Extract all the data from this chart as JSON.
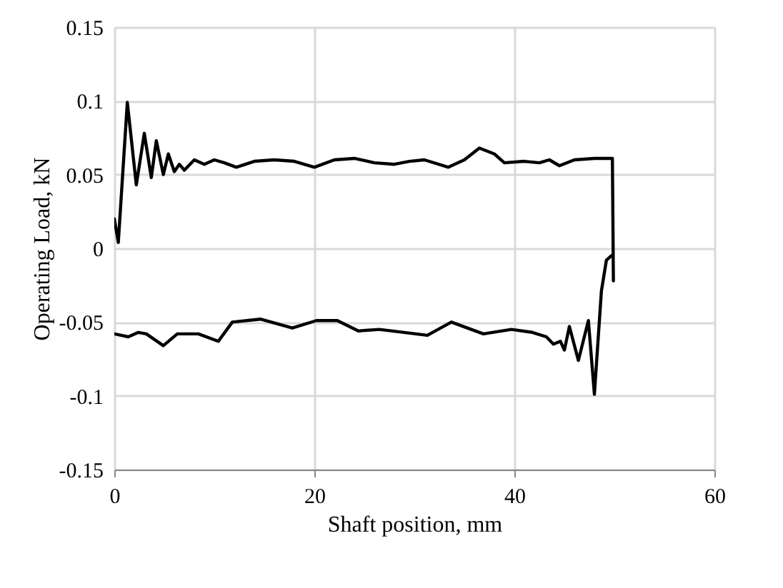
{
  "chart_data": {
    "type": "line",
    "xlabel": "Shaft position, mm",
    "ylabel": "Operating Load, kN",
    "xlim": [
      0,
      60
    ],
    "xticks": [
      0,
      20,
      40,
      60
    ],
    "ylim": [
      -0.15,
      0.15
    ],
    "yticks": [
      -0.15,
      -0.1,
      -0.05,
      0,
      0.05,
      0.1,
      0.15
    ],
    "grid": true,
    "line_style": "solid",
    "marker": "none",
    "series": [
      {
        "color": "#000000",
        "x": [
          0,
          0.4,
          1.3,
          2.2,
          3,
          3.7,
          4.2,
          4.9,
          5.4,
          6,
          6.5,
          7,
          8,
          9,
          10,
          11,
          12.2,
          14,
          16,
          18,
          20,
          22,
          24,
          26,
          28,
          29.5,
          31,
          33.4,
          35,
          36.5,
          38,
          39,
          41,
          42.5,
          43.5,
          44.5,
          46,
          48,
          49.8,
          49.9
        ],
        "values": [
          0.02,
          0.004,
          0.099,
          0.043,
          0.078,
          0.048,
          0.073,
          0.05,
          0.064,
          0.052,
          0.057,
          0.053,
          0.06,
          0.057,
          0.06,
          0.058,
          0.055,
          0.059,
          0.06,
          0.059,
          0.055,
          0.06,
          0.061,
          0.058,
          0.057,
          0.059,
          0.06,
          0.055,
          0.06,
          0.068,
          0.064,
          0.058,
          0.059,
          0.058,
          0.06,
          0.056,
          0.06,
          0.061,
          0.061,
          -0.022
        ]
      },
      {
        "color": "#000000",
        "x": [
          49.7,
          49.2,
          48.7,
          48.0,
          47.4,
          46.4,
          45.5,
          45.0,
          44.6,
          43.9,
          43.2,
          41.8,
          39.7,
          36.9,
          33.7,
          31.3,
          26.5,
          24.4,
          22.3,
          20.2,
          17.8,
          14.6,
          11.8,
          10.4,
          8.4,
          6.3,
          4.9,
          3.2,
          2.4,
          1.4,
          0
        ],
        "values": [
          -0.005,
          -0.008,
          -0.029,
          -0.099,
          -0.049,
          -0.076,
          -0.053,
          -0.069,
          -0.063,
          -0.065,
          -0.06,
          -0.057,
          -0.055,
          -0.058,
          -0.05,
          -0.059,
          -0.055,
          -0.056,
          -0.049,
          -0.049,
          -0.054,
          -0.048,
          -0.05,
          -0.063,
          -0.058,
          -0.058,
          -0.066,
          -0.058,
          -0.057,
          -0.06,
          -0.058
        ]
      }
    ]
  }
}
